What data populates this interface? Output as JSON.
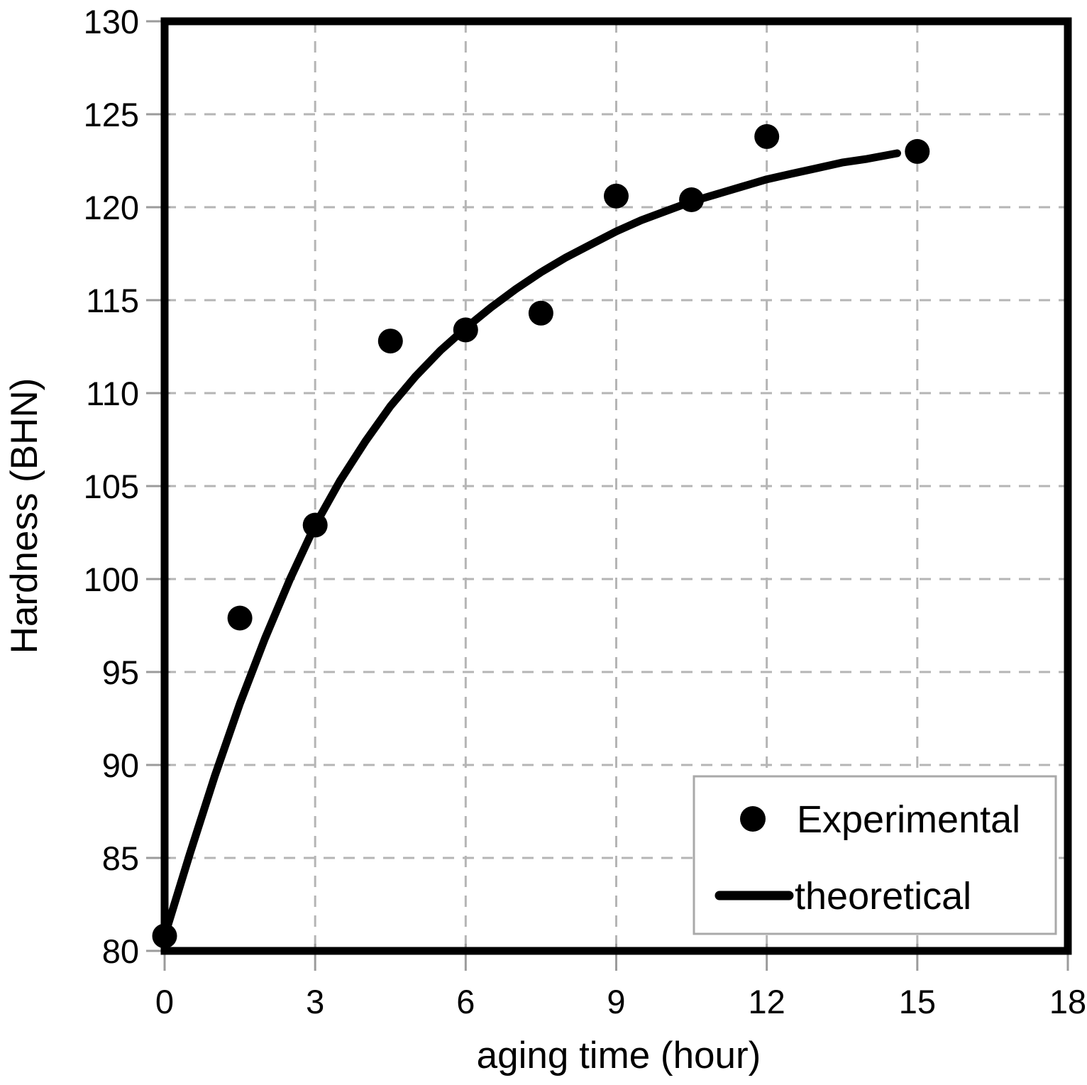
{
  "figure": {
    "background": "#ffffff",
    "axis_color": "#000000",
    "grid_color": "#b5b5b5",
    "tick_color": "#9b9b9b",
    "marker_color": "#000000",
    "curve_color": "#000000",
    "legend_border_color": "#a9a9a9"
  },
  "chart_data": {
    "type": "scatter",
    "title": "",
    "xlabel": "aging time (hour)",
    "ylabel": "Hardness (BHN)",
    "xlim": [
      0,
      18
    ],
    "ylim": [
      80,
      130
    ],
    "x_ticks": [
      0,
      3,
      6,
      9,
      12,
      15,
      18
    ],
    "y_ticks": [
      80,
      85,
      90,
      95,
      100,
      105,
      110,
      115,
      120,
      125,
      130
    ],
    "grid": "dashed",
    "legend": {
      "position": "bottom-right",
      "items": [
        {
          "label": "Experimental",
          "marker": "dot"
        },
        {
          "label": "theoretical",
          "marker": "line"
        }
      ]
    },
    "series": [
      {
        "name": "Experimental",
        "plot": "scatter",
        "marker": "circle",
        "color": "#000000",
        "points": [
          [
            0,
            80.8
          ],
          [
            1.5,
            97.9
          ],
          [
            3,
            102.9
          ],
          [
            4.5,
            112.8
          ],
          [
            6,
            113.4
          ],
          [
            7.5,
            114.3
          ],
          [
            9,
            120.6
          ],
          [
            10.5,
            120.4
          ],
          [
            12,
            123.8
          ],
          [
            15,
            123.0
          ]
        ]
      },
      {
        "name": "theoretical",
        "plot": "line",
        "color": "#000000",
        "points": [
          [
            0,
            80.8
          ],
          [
            0.5,
            85.2
          ],
          [
            1,
            89.4
          ],
          [
            1.5,
            93.3
          ],
          [
            2,
            96.8
          ],
          [
            2.5,
            100.0
          ],
          [
            3,
            102.9
          ],
          [
            3.5,
            105.3
          ],
          [
            4,
            107.4
          ],
          [
            4.5,
            109.3
          ],
          [
            5,
            110.9
          ],
          [
            5.5,
            112.3
          ],
          [
            6,
            113.5
          ],
          [
            6.5,
            114.6
          ],
          [
            7,
            115.6
          ],
          [
            7.5,
            116.5
          ],
          [
            8,
            117.3
          ],
          [
            8.5,
            118.0
          ],
          [
            9,
            118.7
          ],
          [
            9.5,
            119.3
          ],
          [
            10,
            119.8
          ],
          [
            10.5,
            120.3
          ],
          [
            11,
            120.7
          ],
          [
            11.5,
            121.1
          ],
          [
            12,
            121.5
          ],
          [
            12.5,
            121.8
          ],
          [
            13,
            122.1
          ],
          [
            13.5,
            122.4
          ],
          [
            14,
            122.6
          ],
          [
            14.6,
            122.9
          ]
        ]
      }
    ]
  }
}
